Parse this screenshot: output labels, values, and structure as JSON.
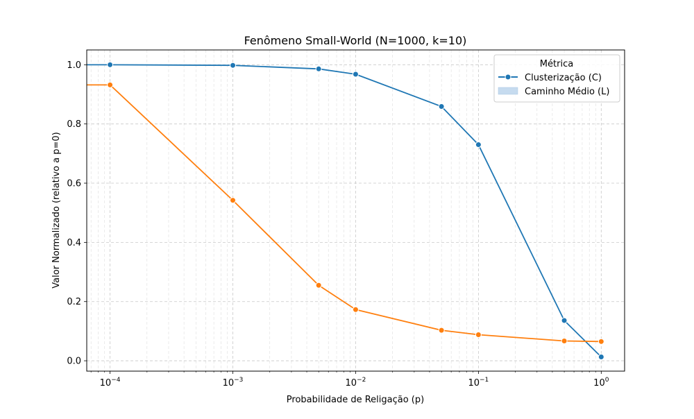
{
  "chart_data": {
    "type": "line",
    "title": "Fenômeno Small-World (N=1000, k=10)",
    "xlabel": "Probabilidade de Religação (p)",
    "ylabel": "Valor Normalizado (relativo a p=0)",
    "x_scale": "log",
    "xlim": [
      6.46e-05,
      1.55
    ],
    "ylim": [
      -0.035,
      1.05
    ],
    "x_ticks": [
      {
        "value": 0.0001,
        "base": "10",
        "exp": "−4"
      },
      {
        "value": 0.001,
        "base": "10",
        "exp": "−3"
      },
      {
        "value": 0.01,
        "base": "10",
        "exp": "−2"
      },
      {
        "value": 0.1,
        "base": "10",
        "exp": "−1"
      },
      {
        "value": 1,
        "base": "10",
        "exp": "0"
      }
    ],
    "y_ticks": [
      {
        "value": 0.0,
        "label": "0.0"
      },
      {
        "value": 0.2,
        "label": "0.2"
      },
      {
        "value": 0.4,
        "label": "0.4"
      },
      {
        "value": 0.6,
        "label": "0.6"
      },
      {
        "value": 0.8,
        "label": "0.8"
      },
      {
        "value": 1.0,
        "label": "1.0"
      }
    ],
    "grid": true,
    "series": [
      {
        "name": "Clusterização (C)",
        "color": "#1f77b4",
        "x": [
          0,
          0.0001,
          0.001,
          0.005,
          0.01,
          0.05,
          0.1,
          0.5,
          1.0
        ],
        "y": [
          1.0,
          1.0,
          0.998,
          0.986,
          0.968,
          0.859,
          0.73,
          0.136,
          0.013
        ]
      },
      {
        "name": "Caminho Médio (L)",
        "color": "#ff7f0e",
        "x": [
          0,
          0.0001,
          0.001,
          0.005,
          0.01,
          0.05,
          0.1,
          0.5,
          1.0
        ],
        "y": [
          0.932,
          0.932,
          0.542,
          0.255,
          0.173,
          0.103,
          0.088,
          0.067,
          0.065
        ]
      }
    ],
    "legend": {
      "title": "Métrica",
      "placement": "top-right",
      "entries": [
        {
          "label": "Clusterização (C)",
          "style": "line-marker",
          "color": "#1f77b4"
        },
        {
          "label": "Caminho Médio (L)",
          "style": "patch",
          "color": "#c6dbef"
        }
      ]
    }
  }
}
